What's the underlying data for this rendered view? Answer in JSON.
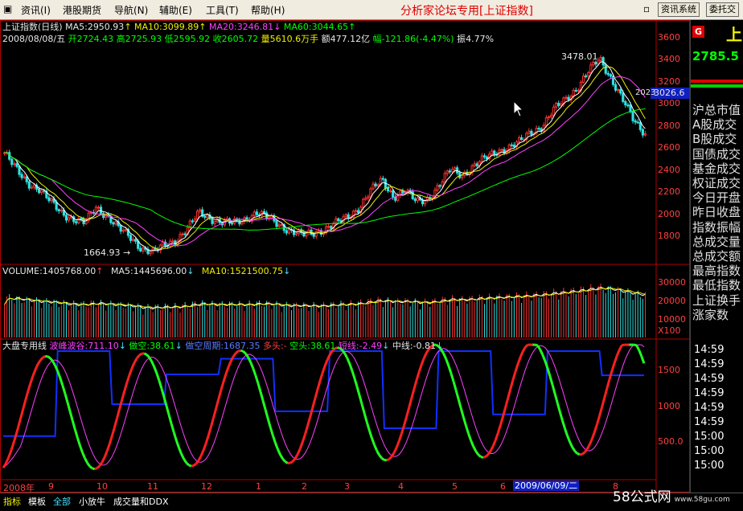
{
  "menubar": {
    "items": [
      "资讯(I)",
      "港股期货",
      "导航(N)",
      "辅助(E)",
      "工具(T)",
      "帮助(H)"
    ],
    "brand": "分析家论坛专用[上证指数]",
    "buttons": [
      "资讯系统",
      "委托交"
    ]
  },
  "kline": {
    "title": "上证指数(日线)",
    "ma5": "MA5:2950.93",
    "ma10": "MA10:3099.89",
    "ma20": "MA20:3246.81",
    "ma60": "MA60:3044.65",
    "date": "2008/08/08/五",
    "open": "开2724.43",
    "high": "高2725.93",
    "low": "低2595.92",
    "close": "收2605.72",
    "vol": "量5610.6万手",
    "amount": "额477.12亿",
    "change": "幅-121.86(-4.47%)",
    "amplitude": "振4.77%",
    "peak_label": "3478.01",
    "trough_label": "1664.93",
    "cursor_price": "3026.6",
    "cursor_price_left": "2023",
    "yticks": [
      "3600",
      "3400",
      "3200",
      "3000",
      "2800",
      "2600",
      "2400",
      "2200",
      "2000",
      "1800"
    ]
  },
  "volume": {
    "label": "VOLUME:1405768.00",
    "ma5": "MA5:1445696.00",
    "ma10": "MA10:1521500.75",
    "yticks": [
      "30000",
      "20000",
      "10000"
    ],
    "unit": "X100"
  },
  "indicator": {
    "name": "大盘专用线",
    "wave": "波峰波谷:711.10",
    "short_do": "做空:38.61",
    "short_cycle": "做空周期:1687.35",
    "long": "多头:-",
    "short": "空头:38.61",
    "short_line": "短线:-2.49",
    "mid_line": "中线:-0.81",
    "yticks": [
      "1500",
      "1000",
      "500.0"
    ]
  },
  "xaxis": {
    "labels": [
      "2008年",
      "9",
      "10",
      "11",
      "12",
      "1",
      "2",
      "3",
      "4",
      "5",
      "6",
      "7",
      "8"
    ],
    "cursor_date": "2009/06/09/二"
  },
  "right_panel": {
    "tag": "G",
    "tag_right": "上",
    "price": "2785.5",
    "labels": [
      "沪总市值",
      "A股成交",
      "B股成交",
      "国债成交",
      "基金成交",
      "权证成交",
      "今日开盘",
      "昨日收盘",
      "指数振幅",
      "总成交量",
      "总成交额",
      "最高指数",
      "最低指数",
      "上证换手",
      "涨家数"
    ],
    "times": [
      "14:59",
      "14:59",
      "14:59",
      "14:59",
      "14:59",
      "14:59",
      "15:00",
      "15:00",
      "15:00"
    ]
  },
  "bottom_tabs": [
    "指标",
    "模板",
    "全部",
    "小放牛",
    "成交量和DDX"
  ],
  "watermark": {
    "text": "58公式网",
    "url": "www.58gu.com"
  },
  "chart_data": {
    "type": "candlestick",
    "title": "上证指数(日线)",
    "x_range": [
      "2008-08",
      "2009-08"
    ],
    "ylim": [
      1600,
      3700
    ],
    "close_points": [
      2605,
      2450,
      2330,
      2270,
      2150,
      2050,
      1990,
      1950,
      2100,
      2020,
      1900,
      1820,
      1720,
      1680,
      1750,
      1800,
      1900,
      2050,
      2000,
      1960,
      1950,
      1990,
      2050,
      2000,
      1940,
      1880,
      1840,
      1860,
      1900,
      1950,
      2010,
      2100,
      2250,
      2350,
      2200,
      2250,
      2150,
      2180,
      2300,
      2450,
      2400,
      2480,
      2550,
      2620,
      2650,
      2700,
      2800,
      2850,
      3000,
      3100,
      3200,
      3350,
      3478,
      3300,
      3100,
      2900,
      2785
    ]
  }
}
